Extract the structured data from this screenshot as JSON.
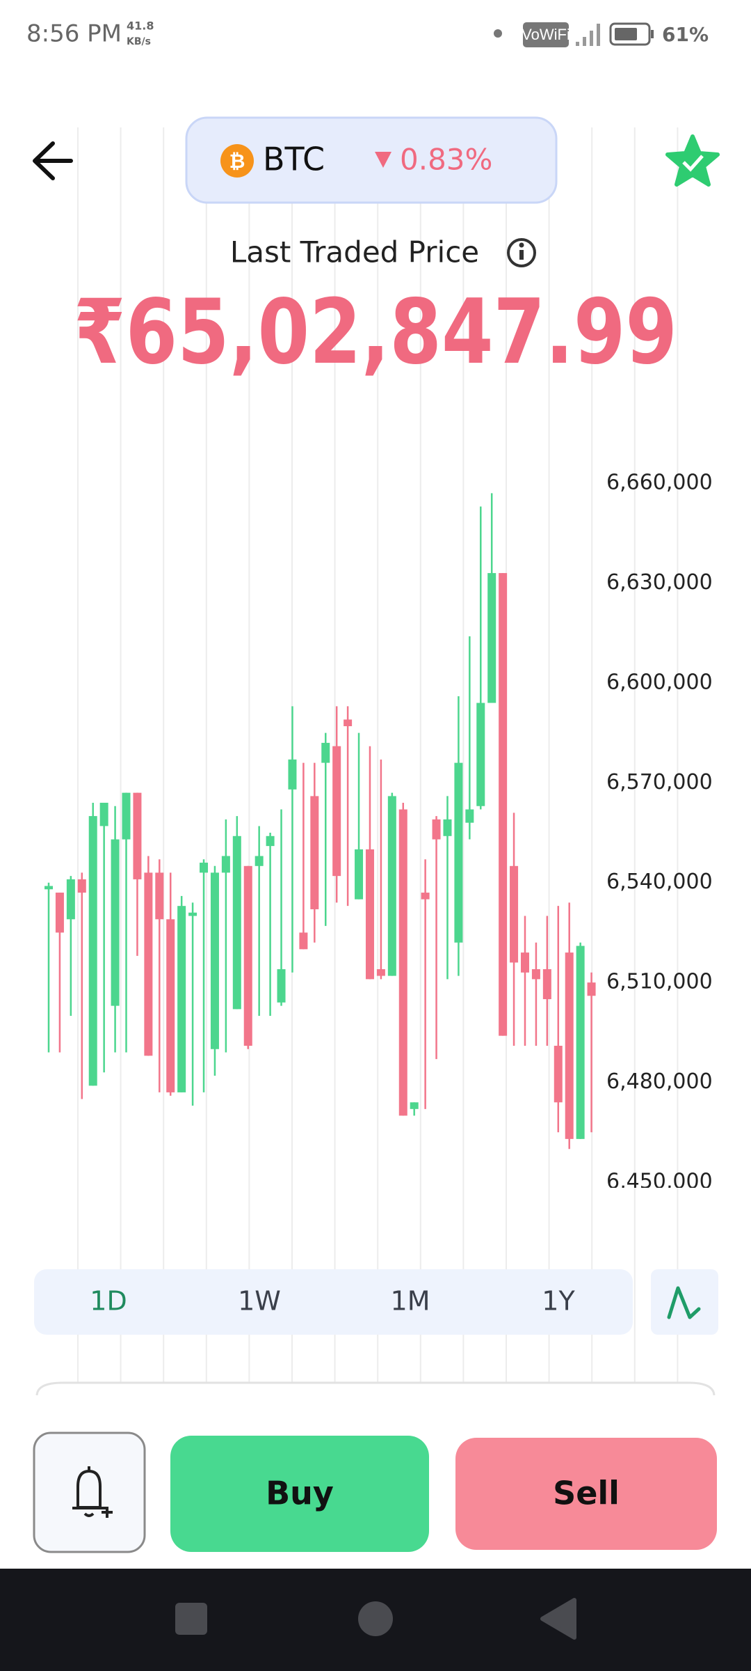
{
  "status_bar": {
    "time": "8:56 PM",
    "speed": "41.8",
    "speed_unit": "KB/s",
    "network": "VoWiFi",
    "battery": "61%"
  },
  "header": {
    "symbol": "BTC",
    "change": "0.83%"
  },
  "price": {
    "label": "Last Traded Price",
    "value": "₹65,02,847.99"
  },
  "chart_data": {
    "type": "candlestick",
    "up_color": "#4cd68e",
    "down_color": "#f2758a",
    "ylim": [
      6450000,
      6660000
    ],
    "yticks": [
      {
        "value": 6450000,
        "label": "6,450,000"
      },
      {
        "value": 6480000,
        "label": "6,480,000"
      },
      {
        "value": 6510000,
        "label": "6,510,000"
      },
      {
        "value": 6540000,
        "label": "6,540,000"
      },
      {
        "value": 6570000,
        "label": "6,570,000"
      },
      {
        "value": 6600000,
        "label": "6,600,000"
      },
      {
        "value": 6630000,
        "label": "6,630,000"
      },
      {
        "value": 6660000,
        "label": "6,660,000"
      }
    ],
    "open": [
      6538000,
      6537000,
      6529000,
      6541000,
      6479000,
      6557000,
      6503000,
      6553000,
      6567000,
      6543000,
      6543000,
      6529000,
      6477000,
      6530000,
      6543000,
      6490000,
      6543000,
      6502000,
      6545000,
      6545000,
      6551000,
      6504000,
      6568000,
      6525000,
      6566000,
      6576000,
      6581000,
      6589000,
      6535000,
      6550000,
      6514000,
      6512000,
      6562000,
      6472000,
      6537000,
      6559000,
      6554000,
      6522000,
      6558000,
      6563000,
      6594000,
      6633000,
      6545000,
      6519000,
      6514000,
      6514000,
      6491000,
      6519000,
      6463000,
      6510000
    ],
    "high": [
      6540000,
      6537000,
      6542000,
      6543000,
      6564000,
      6564000,
      6563000,
      6567000,
      6567000,
      6548000,
      6547000,
      6543000,
      6536000,
      6534000,
      6547000,
      6545000,
      6559000,
      6560000,
      6545000,
      6557000,
      6555000,
      6562000,
      6593000,
      6576000,
      6576000,
      6585000,
      6593000,
      6593000,
      6585000,
      6581000,
      6577000,
      6567000,
      6564000,
      6474000,
      6547000,
      6560000,
      6566000,
      6596000,
      6614000,
      6653000,
      6657000,
      6633000,
      6561000,
      6530000,
      6522000,
      6530000,
      6533000,
      6534000,
      6522000,
      6513000
    ],
    "low": [
      6489000,
      6489000,
      6500000,
      6475000,
      6479000,
      6483000,
      6489000,
      6489000,
      6518000,
      6488000,
      6477000,
      6476000,
      6477000,
      6473000,
      6477000,
      6482000,
      6489000,
      6502000,
      6490000,
      6500000,
      6500000,
      6503000,
      6513000,
      6520000,
      6522000,
      6527000,
      6534000,
      6533000,
      6535000,
      6511000,
      6511000,
      6512000,
      6470000,
      6470000,
      6472000,
      6487000,
      6511000,
      6512000,
      6553000,
      6562000,
      6594000,
      6494000,
      6491000,
      6491000,
      6491000,
      6491000,
      6465000,
      6460000,
      6463000,
      6465000
    ],
    "close": [
      6539000,
      6525000,
      6541000,
      6537000,
      6560000,
      6564000,
      6553000,
      6567000,
      6541000,
      6488000,
      6529000,
      6477000,
      6533000,
      6531000,
      6546000,
      6543000,
      6548000,
      6554000,
      6491000,
      6548000,
      6554000,
      6514000,
      6577000,
      6520000,
      6532000,
      6582000,
      6542000,
      6587000,
      6550000,
      6511000,
      6512000,
      6566000,
      6470000,
      6474000,
      6535000,
      6553000,
      6559000,
      6576000,
      6562000,
      6594000,
      6633000,
      6494000,
      6516000,
      6513000,
      6511000,
      6505000,
      6474000,
      6463000,
      6521000,
      6506000
    ]
  },
  "timeframes": [
    "1D",
    "1W",
    "1M",
    "1Y"
  ],
  "actions": {
    "buy": "Buy",
    "sell": "Sell"
  }
}
